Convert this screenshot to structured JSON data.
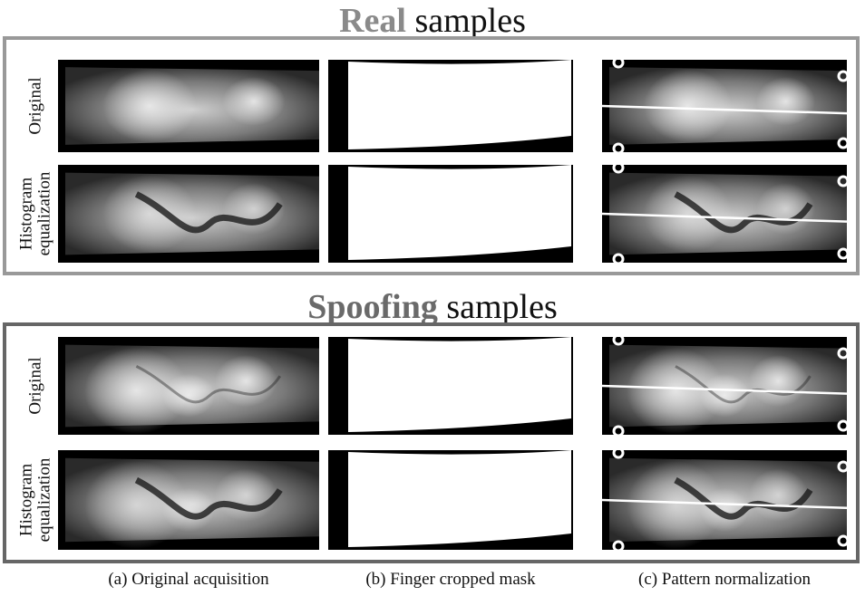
{
  "sections": [
    {
      "highlight": "Real",
      "title": "samples",
      "rows": [
        {
          "label": [
            "Original"
          ]
        },
        {
          "label": [
            "Histogram",
            "equalization"
          ]
        }
      ]
    },
    {
      "highlight": "Spoofing",
      "title": "samples",
      "rows": [
        {
          "label": [
            "Original"
          ]
        },
        {
          "label": [
            "Histogram",
            "equalization"
          ]
        }
      ]
    }
  ],
  "captions": [
    "(a) Original acquisition",
    "(b) Finger cropped mask",
    "(c) Pattern normalization"
  ]
}
